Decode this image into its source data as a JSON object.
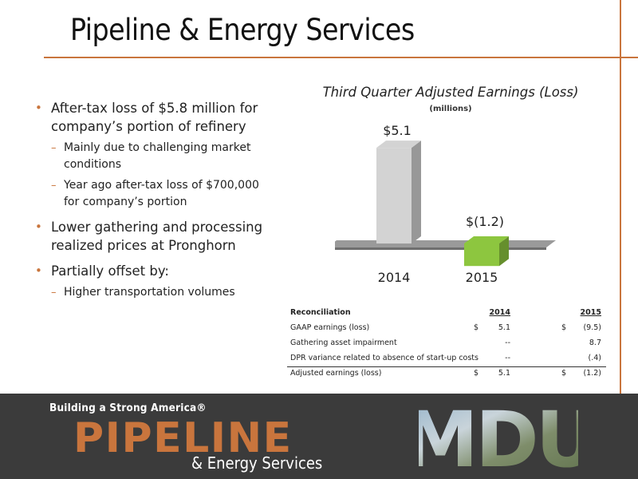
{
  "slide": {
    "title": "Pipeline & Energy Services"
  },
  "bullets": [
    {
      "text": "After-tax loss of $5.8 million for company’s portion of refinery",
      "sub": [
        "Mainly due to challenging market conditions",
        "Year ago after-tax loss of $700,000 for company’s portion"
      ]
    },
    {
      "text": "Lower gathering and processing realized prices at Pronghorn",
      "sub": []
    },
    {
      "text": "Partially offset by:",
      "sub": [
        "Higher transportation volumes"
      ]
    }
  ],
  "chart_data": {
    "type": "bar",
    "title": "Third Quarter Adjusted Earnings (Loss)",
    "subtitle": "(millions)",
    "categories": [
      "2014",
      "2015"
    ],
    "values": [
      5.1,
      -1.2
    ],
    "data_labels": [
      "$5.1",
      "$(1.2)"
    ],
    "colors": [
      "#d3d3d3",
      "#8dc63f"
    ],
    "style": "3d"
  },
  "reconciliation": {
    "title": "Reconciliation",
    "col_2014": "2014",
    "col_2015": "2015",
    "rows": [
      {
        "label": "GAAP earnings (loss)",
        "s1": "$",
        "v2014": "5.1",
        "s2": "$",
        "v2015": "(9.5)"
      },
      {
        "label": "Gathering asset impairment",
        "s1": "",
        "v2014": "--",
        "s2": "",
        "v2015": "8.7"
      },
      {
        "label": "DPR variance related to absence of start-up costs",
        "s1": "",
        "v2014": "--",
        "s2": "",
        "v2015": "(.4)"
      }
    ],
    "total": {
      "label": "Adjusted earnings (loss)",
      "s1": "$",
      "v2014": "5.1",
      "s2": "$",
      "v2015": "(1.2)"
    }
  },
  "footer": {
    "tagline": "Building a Strong America®",
    "brand": "PIPELINE",
    "subbrand": "& Energy Services",
    "logo": "MDU",
    "accent": "#c9753d",
    "background": "#3b3b3b"
  }
}
